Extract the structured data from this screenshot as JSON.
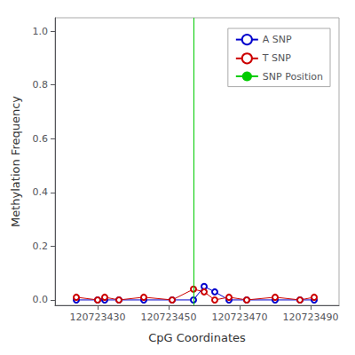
{
  "chart_data": {
    "type": "line",
    "xlabel": "CpG Coordinates",
    "ylabel": "Methylation Frequency",
    "x": [
      120723424,
      120723430,
      120723432,
      120723436,
      120723443,
      120723451,
      120723457,
      120723460,
      120723463,
      120723467,
      120723472,
      120723480,
      120723487,
      120723491
    ],
    "series": [
      {
        "name": "A SNP",
        "color": "#0000cc",
        "marker": "circle",
        "values": [
          0.0,
          0.0,
          0.0,
          0.0,
          0.0,
          0.0,
          0.0,
          0.05,
          0.03,
          0.0,
          0.0,
          0.0,
          0.0,
          0.0
        ]
      },
      {
        "name": "T SNP",
        "color": "#cc0000",
        "marker": "circle",
        "values": [
          0.01,
          0.0,
          0.01,
          0.0,
          0.01,
          0.0,
          0.04,
          0.03,
          0.0,
          0.01,
          0.0,
          0.01,
          0.0,
          0.01
        ]
      },
      {
        "name": "SNP Position",
        "type": "vline",
        "color": "#00cc00",
        "x": 120723457
      }
    ],
    "xlim": [
      120723418,
      120723498
    ],
    "xticks": [
      120723430,
      120723450,
      120723470,
      120723490
    ],
    "ylim": [
      -0.02,
      1.05
    ],
    "yticks": [
      {
        "value": 0.0,
        "label": "0.0"
      },
      0.2,
      0.4,
      0.6,
      0.8,
      {
        "value": 1.0,
        "label": "1.0"
      }
    ],
    "grid": false,
    "legend": "upper right"
  }
}
